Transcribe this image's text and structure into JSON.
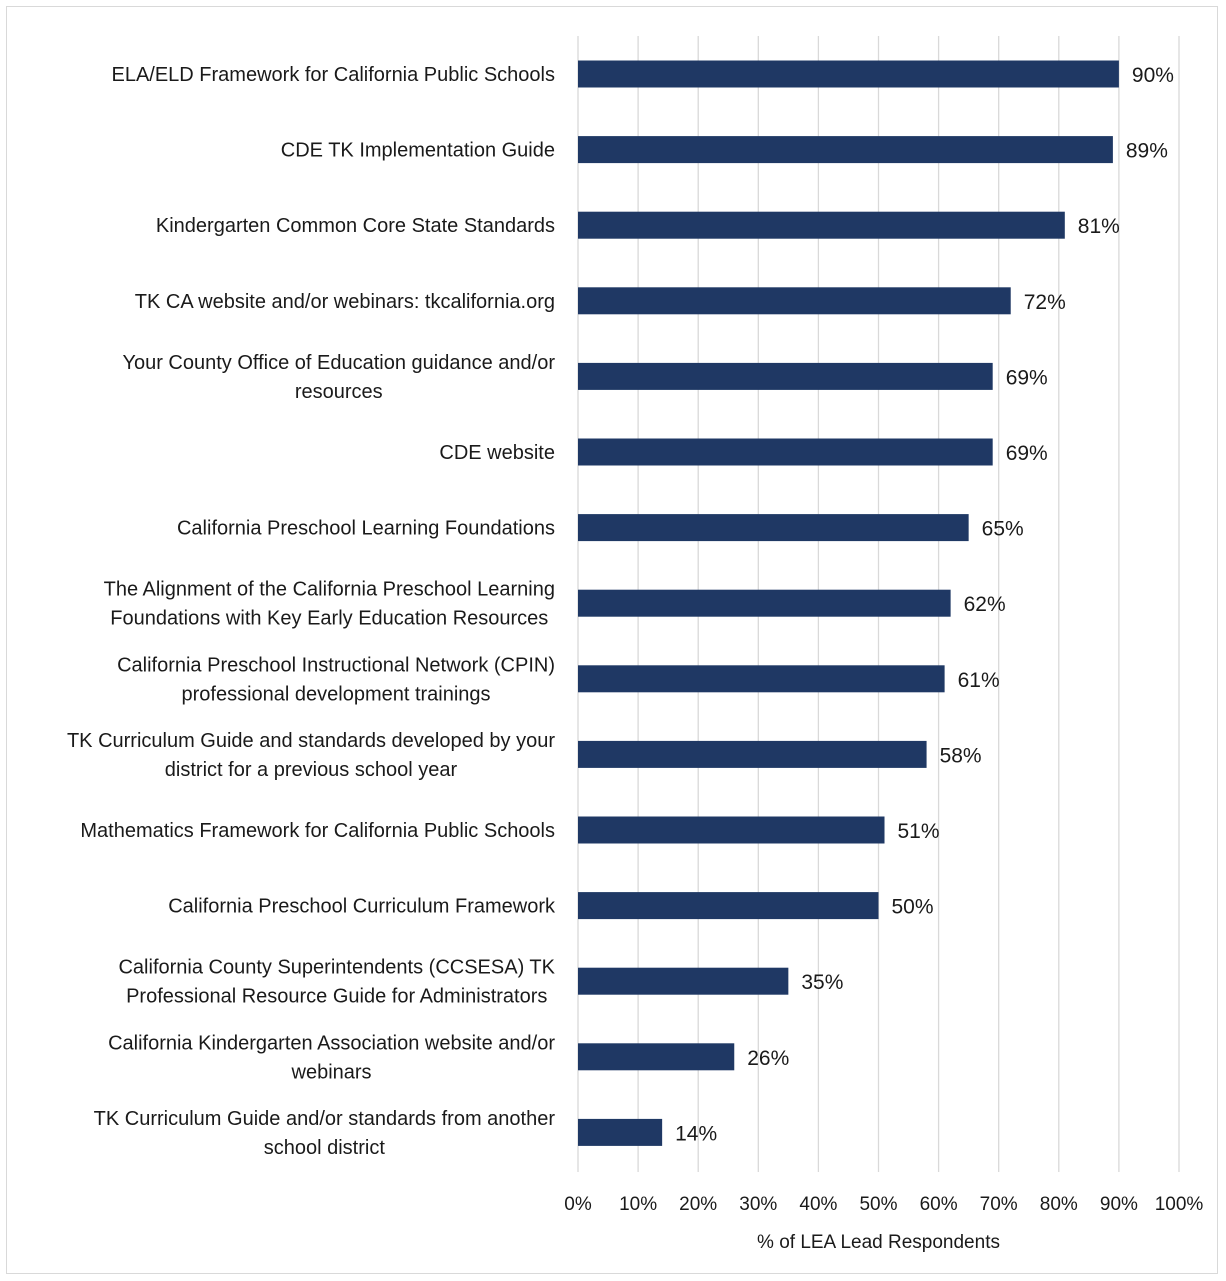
{
  "chart_data": {
    "type": "bar",
    "orientation": "horizontal",
    "categories": [
      [
        "ELA/ELD Framework for California Public Schools"
      ],
      [
        "CDE TK Implementation Guide"
      ],
      [
        "Kindergarten Common Core State Standards"
      ],
      [
        "TK CA website and/or webinars: tkcalifornia.org"
      ],
      [
        "Your County Office of Education guidance and/or",
        "resources"
      ],
      [
        "CDE website"
      ],
      [
        "California Preschool Learning Foundations"
      ],
      [
        "The Alignment of the California Preschool Learning",
        "Foundations with Key Early Education Resources"
      ],
      [
        "California Preschool Instructional Network (CPIN)",
        "professional development trainings"
      ],
      [
        "TK Curriculum Guide and standards developed by your",
        "district for a previous school year"
      ],
      [
        "Mathematics Framework for California Public Schools"
      ],
      [
        "California Preschool Curriculum Framework"
      ],
      [
        "California County Superintendents (CCSESA) TK",
        "Professional Resource Guide for Administrators"
      ],
      [
        "California Kindergarten Association website and/or",
        "webinars"
      ],
      [
        "TK Curriculum Guide and/or standards from another",
        "school district"
      ]
    ],
    "values": [
      90,
      89,
      81,
      72,
      69,
      69,
      65,
      62,
      61,
      58,
      51,
      50,
      35,
      26,
      14
    ],
    "value_labels": [
      "90%",
      "89%",
      "81%",
      "72%",
      "69%",
      "69%",
      "65%",
      "62%",
      "61%",
      "58%",
      "51%",
      "50%",
      "35%",
      "26%",
      "14%"
    ],
    "xlim": [
      0,
      100
    ],
    "x_ticks": [
      0,
      10,
      20,
      30,
      40,
      50,
      60,
      70,
      80,
      90,
      100
    ],
    "x_tick_labels": [
      "0%",
      "10%",
      "20%",
      "30%",
      "40%",
      "50%",
      "60%",
      "70%",
      "80%",
      "90%",
      "100%"
    ],
    "xlabel": "% of LEA Lead Respondents",
    "title": "",
    "grid": "vertical",
    "legend": "none",
    "bar_color": "#1f3864",
    "grid_color": "#d9d9d9"
  }
}
